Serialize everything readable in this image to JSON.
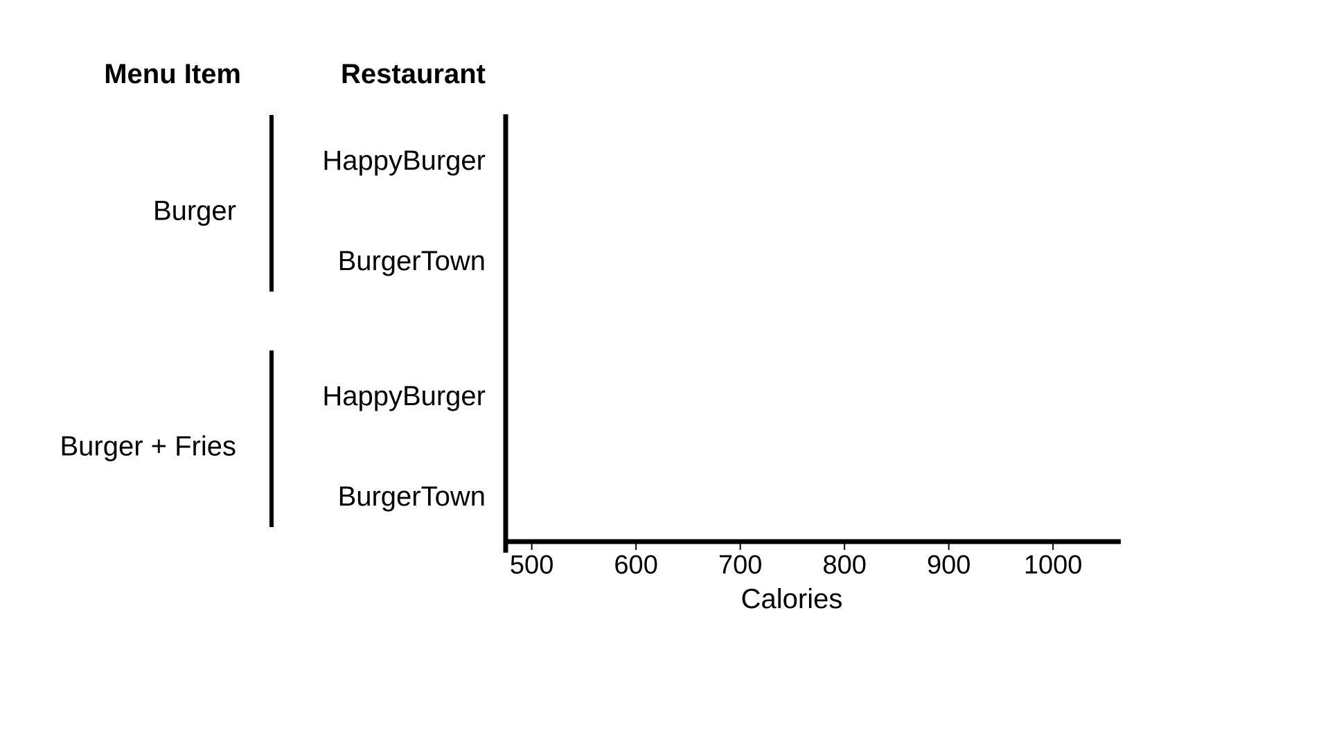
{
  "chart_data": {
    "type": "bar",
    "orientation": "horizontal",
    "headers": {
      "group": "Menu Item",
      "category": "Restaurant"
    },
    "groups": [
      {
        "label": "Burger",
        "categories": [
          "HappyBurger",
          "BurgerTown"
        ]
      },
      {
        "label": "Burger + Fries",
        "categories": [
          "HappyBurger",
          "BurgerTown"
        ]
      }
    ],
    "values": [],
    "xlabel": "Calories",
    "xticks": [
      500,
      600,
      700,
      800,
      900,
      1000
    ],
    "xlim": [
      475,
      1065
    ],
    "grid": false
  }
}
